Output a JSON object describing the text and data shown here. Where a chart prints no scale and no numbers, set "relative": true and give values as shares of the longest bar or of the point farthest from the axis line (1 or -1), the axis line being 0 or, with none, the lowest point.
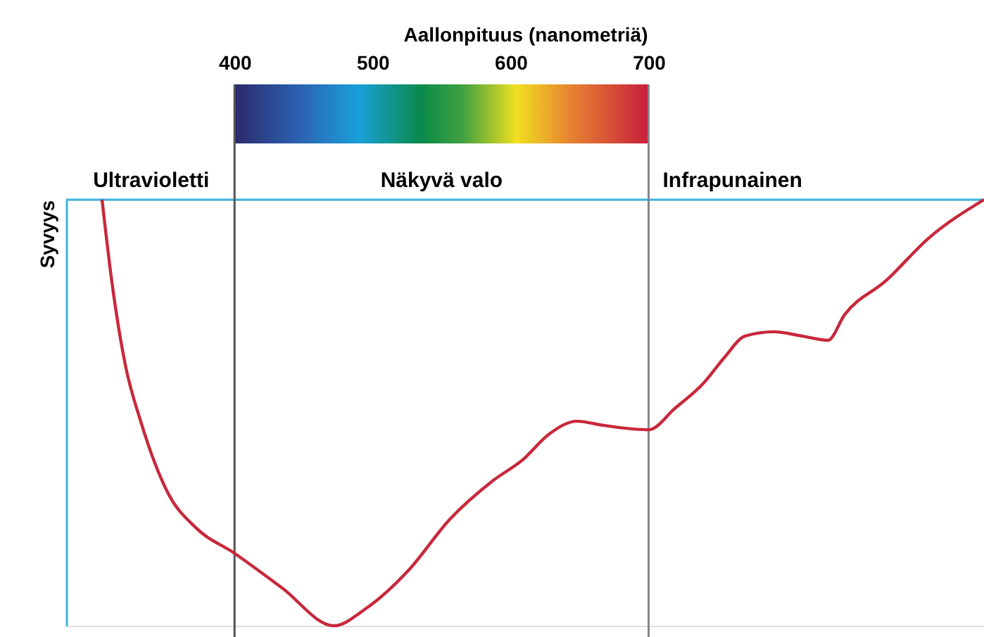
{
  "chart_data": {
    "type": "line",
    "relative": true,
    "xlabel": "Aallonpituus (nanometriä)",
    "ylabel": "Syvyys",
    "x": [
      304,
      311,
      321,
      332,
      352,
      372,
      400,
      434,
      472,
      495,
      526,
      556,
      587,
      609,
      628,
      648,
      668,
      700,
      719,
      740,
      755,
      770,
      791,
      811,
      830,
      842,
      872,
      903,
      943
    ],
    "series": [
      {
        "color": "#c8283c",
        "values": [
          0,
          -0.19,
          -0.39,
          -0.52,
          -0.69,
          -0.77,
          -0.83,
          -0.91,
          -1,
          -0.96,
          -0.87,
          -0.75,
          -0.66,
          -0.61,
          -0.55,
          -0.52,
          -0.53,
          -0.54,
          -0.49,
          -0.43,
          -0.37,
          -0.32,
          -0.31,
          -0.32,
          -0.33,
          -0.27,
          -0.19,
          -0.09,
          0
        ]
      }
    ],
    "xlim": [
      278,
      943
    ],
    "xticks": [
      400,
      500,
      600,
      700
    ],
    "ref_lines": [
      {
        "axis": "x",
        "value": 400,
        "color": "#555555"
      },
      {
        "axis": "x",
        "value": 700,
        "color": "#888888"
      }
    ],
    "annotations": [
      "Ultravioletti",
      "Näkyvä valo",
      "Infrapunainen"
    ],
    "grid": false,
    "marker": "none",
    "line_style": "solid"
  }
}
